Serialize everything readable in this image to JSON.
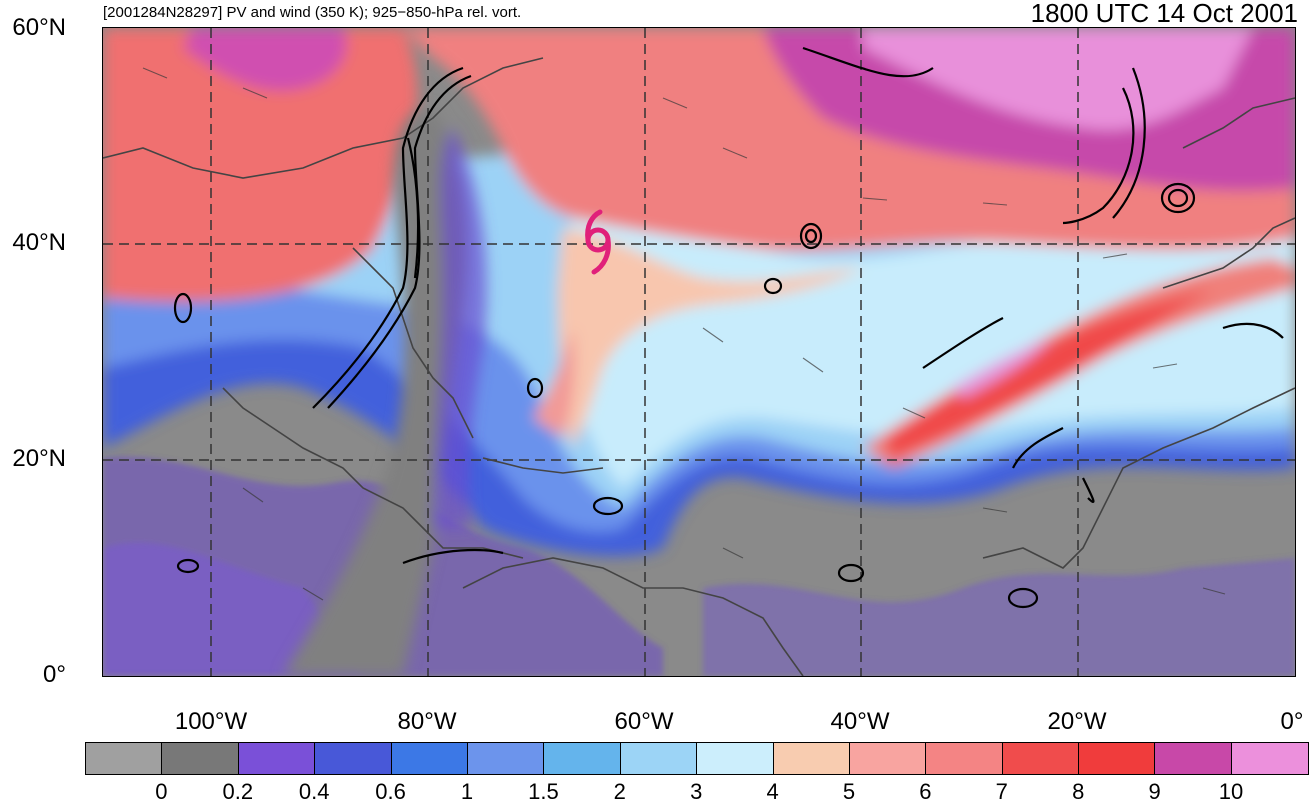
{
  "header": {
    "left_title": "[2001284N28297] PV and wind (350 K); 925−850-hPa rel. vort.",
    "right_title": "1800 UTC 14 Oct 2001"
  },
  "map": {
    "extent": {
      "lon_min": -110,
      "lon_max": 0,
      "lat_min": 0,
      "lat_max": 60
    },
    "lat_labels": [
      "60°N",
      "40°N",
      "20°N",
      "0°"
    ],
    "lat_values": [
      60,
      40,
      20,
      0
    ],
    "lon_labels": [
      "100°W",
      "80°W",
      "60°W",
      "40°W",
      "20°W",
      "0°"
    ],
    "lon_values": [
      -100,
      -80,
      -60,
      -40,
      -20,
      0
    ],
    "gridline_style": "dashed",
    "storm_symbol": {
      "name": "tropical-cyclone-icon",
      "color": "#e0207a",
      "lon": -64.5,
      "lat": 40
    }
  },
  "colorbar": {
    "labels": [
      "0",
      "0.2",
      "0.4",
      "0.6",
      "1",
      "1.5",
      "2",
      "3",
      "4",
      "5",
      "6",
      "7",
      "8",
      "9",
      "10"
    ],
    "colors": [
      "#a0a0a0",
      "#787878",
      "#7a50d8",
      "#4858d8",
      "#3c78e6",
      "#6c94ec",
      "#64b4ec",
      "#9cd4f6",
      "#cceefc",
      "#f8ccb0",
      "#f8a4a0",
      "#f48484",
      "#f04c4c",
      "#f03c3c",
      "#c848a8",
      "#ec90dc"
    ]
  }
}
